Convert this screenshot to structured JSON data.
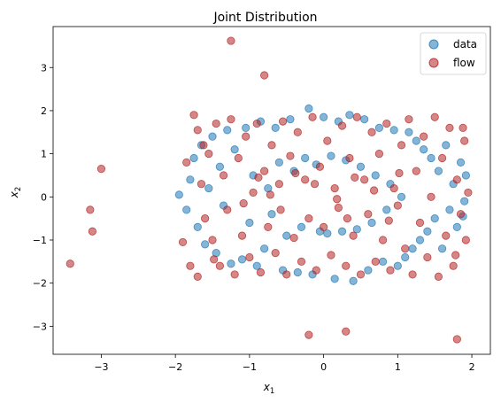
{
  "chart_data": {
    "type": "scatter",
    "title": "Joint Distribution",
    "xlabel": "x",
    "xlabel_sub": "1",
    "ylabel": "x",
    "ylabel_sub": "2",
    "xlim": [
      -3.65,
      2.25
    ],
    "ylim": [
      -3.65,
      3.95
    ],
    "xticks": [
      -3,
      -2,
      -1,
      0,
      1,
      2
    ],
    "yticks": [
      -3,
      -2,
      -1,
      0,
      1,
      2,
      3
    ],
    "grid": false,
    "legend_position": "top-right",
    "colors": {
      "data": "#1f77b4",
      "flow": "#b22222"
    },
    "series": [
      {
        "name": "data",
        "color": "#1f77b4",
        "points": [
          [
            -1.95,
            0.05
          ],
          [
            -1.85,
            -0.3
          ],
          [
            -1.8,
            0.4
          ],
          [
            -1.75,
            0.9
          ],
          [
            -1.7,
            -0.7
          ],
          [
            -1.65,
            1.2
          ],
          [
            -1.6,
            -1.1
          ],
          [
            -1.55,
            0.2
          ],
          [
            -1.5,
            1.4
          ],
          [
            -1.45,
            -1.3
          ],
          [
            -1.4,
            0.7
          ],
          [
            -1.35,
            -0.2
          ],
          [
            -1.3,
            1.55
          ],
          [
            -1.25,
            -1.55
          ],
          [
            -1.2,
            1.1
          ],
          [
            -1.1,
            -1.45
          ],
          [
            -1.05,
            1.6
          ],
          [
            -1.0,
            -0.6
          ],
          [
            -0.95,
            0.5
          ],
          [
            -0.9,
            -1.6
          ],
          [
            -0.85,
            1.75
          ],
          [
            -0.8,
            -1.2
          ],
          [
            -0.75,
            0.2
          ],
          [
            -0.7,
            -0.4
          ],
          [
            -0.65,
            1.6
          ],
          [
            -0.6,
            0.8
          ],
          [
            -0.55,
            -1.7
          ],
          [
            -0.5,
            -0.9
          ],
          [
            -0.45,
            1.8
          ],
          [
            -0.4,
            0.6
          ],
          [
            -0.35,
            -1.75
          ],
          [
            -0.3,
            -0.7
          ],
          [
            -0.25,
            0.9
          ],
          [
            -0.2,
            2.05
          ],
          [
            -0.15,
            -1.8
          ],
          [
            -0.1,
            0.75
          ],
          [
            -0.05,
            -0.8
          ],
          [
            0.0,
            1.85
          ],
          [
            0.05,
            -0.85
          ],
          [
            0.1,
            0.95
          ],
          [
            0.15,
            -1.9
          ],
          [
            0.2,
            1.75
          ],
          [
            0.25,
            -0.8
          ],
          [
            0.3,
            0.85
          ],
          [
            0.35,
            1.9
          ],
          [
            0.4,
            -1.95
          ],
          [
            0.45,
            -0.75
          ],
          [
            0.5,
            0.7
          ],
          [
            0.55,
            1.8
          ],
          [
            0.6,
            -1.7
          ],
          [
            0.65,
            -0.6
          ],
          [
            0.7,
            0.5
          ],
          [
            0.75,
            1.6
          ],
          [
            0.8,
            -1.5
          ],
          [
            0.85,
            -0.3
          ],
          [
            0.9,
            0.3
          ],
          [
            0.95,
            1.55
          ],
          [
            1.0,
            -1.6
          ],
          [
            1.05,
            0.0
          ],
          [
            1.1,
            -1.4
          ],
          [
            1.15,
            1.5
          ],
          [
            1.2,
            -1.2
          ],
          [
            1.25,
            1.3
          ],
          [
            1.3,
            -1.0
          ],
          [
            1.35,
            1.1
          ],
          [
            1.4,
            -0.8
          ],
          [
            1.45,
            0.9
          ],
          [
            1.5,
            -0.5
          ],
          [
            1.55,
            0.6
          ],
          [
            1.6,
            -1.2
          ],
          [
            1.65,
            1.2
          ],
          [
            1.7,
            -0.3
          ],
          [
            1.75,
            0.3
          ],
          [
            1.8,
            -0.7
          ],
          [
            1.85,
            0.8
          ],
          [
            1.9,
            -0.1
          ],
          [
            1.92,
            0.5
          ],
          [
            1.88,
            -0.45
          ]
        ]
      },
      {
        "name": "flow",
        "color": "#b22222",
        "points": [
          [
            -1.25,
            3.62
          ],
          [
            -0.8,
            2.82
          ],
          [
            -3.0,
            0.65
          ],
          [
            -3.15,
            -0.3
          ],
          [
            -3.12,
            -0.8
          ],
          [
            -3.42,
            -1.55
          ],
          [
            -0.2,
            -3.2
          ],
          [
            0.3,
            -3.12
          ],
          [
            1.8,
            -3.3
          ],
          [
            -1.9,
            -1.05
          ],
          [
            -1.85,
            0.8
          ],
          [
            -1.8,
            -1.6
          ],
          [
            -1.75,
            1.9
          ],
          [
            -1.7,
            1.55
          ],
          [
            -1.7,
            -1.85
          ],
          [
            -1.65,
            0.3
          ],
          [
            -1.6,
            -0.5
          ],
          [
            -1.55,
            1.0
          ],
          [
            -1.5,
            -1.0
          ],
          [
            -1.45,
            1.7
          ],
          [
            -1.4,
            -1.6
          ],
          [
            -1.35,
            0.5
          ],
          [
            -1.3,
            -0.3
          ],
          [
            -1.25,
            1.8
          ],
          [
            -1.2,
            -1.8
          ],
          [
            -1.15,
            0.9
          ],
          [
            -1.1,
            -0.9
          ],
          [
            -1.05,
            1.4
          ],
          [
            -1.0,
            -1.4
          ],
          [
            -0.95,
            0.1
          ],
          [
            -0.9,
            1.7
          ],
          [
            -0.85,
            -1.75
          ],
          [
            -0.8,
            0.6
          ],
          [
            -0.75,
            -0.7
          ],
          [
            -0.7,
            1.2
          ],
          [
            -0.65,
            -1.3
          ],
          [
            -0.6,
            0.3
          ],
          [
            -0.55,
            1.75
          ],
          [
            -0.5,
            -1.8
          ],
          [
            -0.45,
            0.95
          ],
          [
            -0.4,
            -0.95
          ],
          [
            -0.35,
            1.5
          ],
          [
            -0.3,
            -1.5
          ],
          [
            -0.25,
            0.4
          ],
          [
            -0.2,
            -0.5
          ],
          [
            -0.15,
            1.85
          ],
          [
            -0.1,
            -1.7
          ],
          [
            -0.05,
            0.7
          ],
          [
            0.0,
            -0.7
          ],
          [
            0.05,
            1.3
          ],
          [
            0.1,
            -1.35
          ],
          [
            0.15,
            0.2
          ],
          [
            0.2,
            -0.25
          ],
          [
            0.25,
            1.65
          ],
          [
            0.3,
            -1.6
          ],
          [
            0.35,
            0.9
          ],
          [
            0.4,
            -0.9
          ],
          [
            0.45,
            1.85
          ],
          [
            0.5,
            -1.8
          ],
          [
            0.55,
            0.4
          ],
          [
            0.6,
            -0.4
          ],
          [
            0.65,
            1.5
          ],
          [
            0.7,
            -1.5
          ],
          [
            0.75,
            1.0
          ],
          [
            0.8,
            -1.0
          ],
          [
            0.85,
            1.7
          ],
          [
            0.9,
            -1.7
          ],
          [
            0.95,
            0.2
          ],
          [
            1.0,
            -0.2
          ],
          [
            1.05,
            1.2
          ],
          [
            1.1,
            -1.2
          ],
          [
            1.15,
            1.8
          ],
          [
            1.2,
            -1.8
          ],
          [
            1.25,
            0.6
          ],
          [
            1.3,
            -0.6
          ],
          [
            1.35,
            1.4
          ],
          [
            1.4,
            -1.4
          ],
          [
            1.45,
            0.0
          ],
          [
            1.5,
            1.85
          ],
          [
            1.55,
            -1.85
          ],
          [
            1.6,
            0.9
          ],
          [
            1.65,
            -0.9
          ],
          [
            1.7,
            1.6
          ],
          [
            1.75,
            -1.6
          ],
          [
            1.8,
            0.4
          ],
          [
            1.85,
            -0.4
          ],
          [
            1.9,
            1.3
          ],
          [
            1.92,
            -1.0
          ],
          [
            1.95,
            0.1
          ],
          [
            1.88,
            1.6
          ],
          [
            1.78,
            -1.35
          ],
          [
            -1.62,
            1.2
          ],
          [
            -1.48,
            -1.45
          ],
          [
            -0.72,
            0.05
          ],
          [
            -0.38,
            0.55
          ],
          [
            0.18,
            -0.05
          ],
          [
            0.42,
            0.45
          ],
          [
            0.68,
            0.15
          ],
          [
            -0.58,
            -0.3
          ],
          [
            0.88,
            -0.55
          ],
          [
            -0.12,
            0.3
          ],
          [
            0.32,
            -0.5
          ],
          [
            -0.88,
            0.45
          ],
          [
            1.02,
            0.55
          ],
          [
            -1.08,
            -0.15
          ]
        ]
      }
    ]
  }
}
